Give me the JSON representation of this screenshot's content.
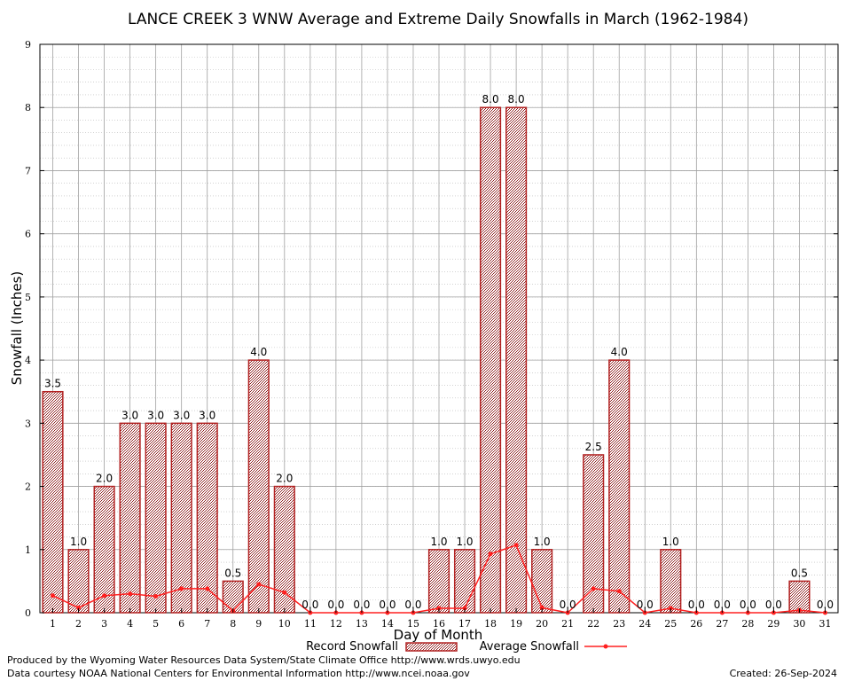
{
  "chart_data": {
    "type": "bar",
    "title": "LANCE CREEK 3 WNW Average and Extreme Daily Snowfalls in March (1962-1984)",
    "xlabel": "Day of Month",
    "ylabel": "Snowfall (Inches)",
    "ylim": [
      0,
      9
    ],
    "yticks": [
      "0",
      "1",
      "2",
      "3",
      "4",
      "5",
      "6",
      "7",
      "8",
      "9"
    ],
    "categories": [
      "1",
      "2",
      "3",
      "4",
      "5",
      "6",
      "7",
      "8",
      "9",
      "10",
      "11",
      "12",
      "13",
      "14",
      "15",
      "16",
      "17",
      "18",
      "19",
      "20",
      "21",
      "22",
      "23",
      "24",
      "25",
      "26",
      "27",
      "28",
      "29",
      "30",
      "31"
    ],
    "series": [
      {
        "name": "Record Snowfall",
        "kind": "bar",
        "color": "#b22222",
        "values": [
          3.5,
          1.0,
          2.0,
          3.0,
          3.0,
          3.0,
          3.0,
          0.5,
          4.0,
          2.0,
          0.0,
          0.0,
          0.0,
          0.0,
          0.0,
          1.0,
          1.0,
          8.0,
          8.0,
          1.0,
          0.0,
          2.5,
          4.0,
          0.0,
          1.0,
          0.0,
          0.0,
          0.0,
          0.0,
          0.5,
          0.0
        ],
        "labels": [
          "3.5",
          "1.0",
          "2.0",
          "3.0",
          "3.0",
          "3.0",
          "3.0",
          "0.5",
          "4.0",
          "2.0",
          "0.0",
          "0.0",
          "0.0",
          "0.0",
          "0.0",
          "1.0",
          "1.0",
          "8.0",
          "8.0",
          "1.0",
          "0.0",
          "2.5",
          "4.0",
          "0.0",
          "1.0",
          "0.0",
          "0.0",
          "0.0",
          "0.0",
          "0.5",
          "0.0"
        ]
      },
      {
        "name": "Average Snowfall",
        "kind": "line",
        "color": "#ff2020",
        "values": [
          0.27,
          0.08,
          0.27,
          0.3,
          0.26,
          0.38,
          0.38,
          0.03,
          0.45,
          0.32,
          0.0,
          0.0,
          0.0,
          0.0,
          0.0,
          0.07,
          0.07,
          0.93,
          1.07,
          0.08,
          0.0,
          0.38,
          0.34,
          0.0,
          0.07,
          0.0,
          0.0,
          0.0,
          0.0,
          0.04,
          0.0
        ]
      }
    ],
    "grid": true,
    "legend_position": "bottom"
  },
  "footer": {
    "producer": "Produced by the Wyoming Water Resources Data System/State Climate Office http://www.wrds.uwyo.edu",
    "courtesy": "Data courtesy NOAA National Centers for Environmental Information http://www.ncei.noaa.gov",
    "created": "Created:  26-Sep-2024"
  }
}
